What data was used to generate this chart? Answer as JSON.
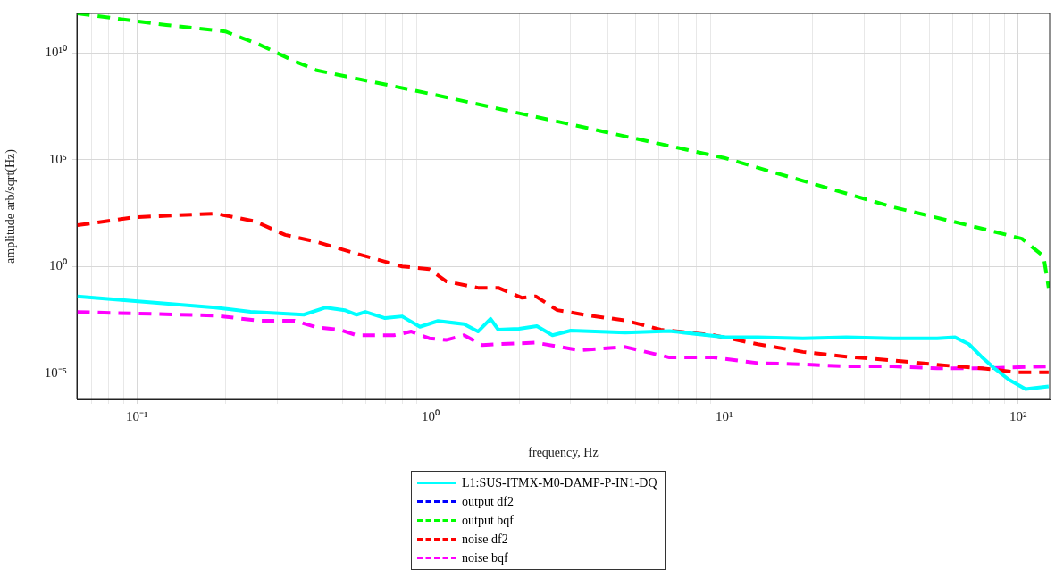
{
  "chart_data": {
    "type": "line",
    "xlabel": "frequency, Hz",
    "ylabel": "amplitude arb/sqrt(Hz)",
    "log": "xy",
    "grid": true,
    "legend": "bottom",
    "xlim": [
      0.0625,
      128
    ],
    "ylim": [
      6e-07,
      700000000000.0
    ],
    "xticks": [
      {
        "value": 0.07,
        "label": null
      },
      {
        "value": 0.08,
        "label": null
      },
      {
        "value": 0.09,
        "label": null
      },
      {
        "value": 0.1,
        "label": "10⁻¹"
      },
      {
        "value": 0.2,
        "label": null
      },
      {
        "value": 0.3,
        "label": null
      },
      {
        "value": 0.4,
        "label": null
      },
      {
        "value": 0.5,
        "label": null
      },
      {
        "value": 0.6,
        "label": null
      },
      {
        "value": 0.7,
        "label": null
      },
      {
        "value": 0.8,
        "label": null
      },
      {
        "value": 0.9,
        "label": null
      },
      {
        "value": 1,
        "label": "10⁰"
      },
      {
        "value": 2,
        "label": null
      },
      {
        "value": 3,
        "label": null
      },
      {
        "value": 4,
        "label": null
      },
      {
        "value": 5,
        "label": null
      },
      {
        "value": 6,
        "label": null
      },
      {
        "value": 7,
        "label": null
      },
      {
        "value": 8,
        "label": null
      },
      {
        "value": 9,
        "label": null
      },
      {
        "value": 10,
        "label": "10¹"
      },
      {
        "value": 20,
        "label": null
      },
      {
        "value": 30,
        "label": null
      },
      {
        "value": 40,
        "label": null
      },
      {
        "value": 50,
        "label": null
      },
      {
        "value": 60,
        "label": null
      },
      {
        "value": 70,
        "label": null
      },
      {
        "value": 80,
        "label": null
      },
      {
        "value": 90,
        "label": null
      },
      {
        "value": 100,
        "label": "10²"
      }
    ],
    "yticks": [
      {
        "value": 1e-05,
        "label": "10⁻⁵"
      },
      {
        "value": 1,
        "label": "10⁰"
      },
      {
        "value": 100000.0,
        "label": "10⁵"
      },
      {
        "value": 10000000000.0,
        "label": "10¹⁰"
      }
    ],
    "series": [
      {
        "name": "L1:SUS-ITMX-M0-DAMP-P-IN1-DQ",
        "color": "#00ffff",
        "line_style": "solid",
        "x": [
          0.0627,
          0.185,
          0.244,
          0.37,
          0.44,
          0.51,
          0.56,
          0.6,
          0.7,
          0.8,
          0.92,
          1.06,
          1.3,
          1.45,
          1.6,
          1.7,
          2,
          2.3,
          2.6,
          3,
          4.6,
          6.5,
          10,
          13,
          18.5,
          26,
          37.5,
          53,
          61,
          68,
          75,
          83,
          93,
          106,
          127
        ],
        "values": [
          0.04,
          0.012,
          0.0075,
          0.0055,
          0.012,
          0.009,
          0.0055,
          0.0075,
          0.0038,
          0.0046,
          0.0015,
          0.0028,
          0.002,
          0.0009,
          0.0035,
          0.0011,
          0.0012,
          0.0016,
          0.0006,
          0.001,
          0.0008,
          0.00095,
          0.0005,
          0.00048,
          0.00043,
          0.00048,
          0.00043,
          0.00043,
          0.00048,
          0.00023,
          6e-05,
          1.7e-05,
          5e-06,
          1.8e-06,
          2.4e-06
        ]
      },
      {
        "name": "output df2",
        "color": "#0000ff",
        "line_style": "dashed"
      },
      {
        "name": "output bqf",
        "color": "#00ff00",
        "line_style": "dashed",
        "x": [
          0.0627,
          0.126,
          0.2,
          0.26,
          0.345,
          0.41,
          1,
          10,
          37.5,
          75,
          103,
          122,
          127
        ],
        "values": [
          700000000000.0,
          200000000000.0,
          100000000000.0,
          25000000000.0,
          4000000000.0,
          1500000000.0,
          120000000.0,
          120000.0,
          600,
          60,
          20,
          3,
          0.1
        ]
      },
      {
        "name": "noise df2",
        "color": "#ff0000",
        "line_style": "dashed",
        "x": [
          0.0627,
          0.098,
          0.185,
          0.252,
          0.32,
          0.41,
          0.56,
          0.8,
          0.99,
          1.13,
          1.45,
          1.7,
          2.05,
          2.28,
          2.7,
          3.47,
          4.6,
          6.07,
          9.2,
          13,
          18.5,
          26,
          37.5,
          53,
          75,
          100,
          127
        ],
        "values": [
          85,
          200,
          300,
          130,
          30,
          14,
          4,
          1,
          0.75,
          0.2,
          0.1,
          0.1,
          0.034,
          0.04,
          0.009,
          0.005,
          0.003,
          0.0011,
          0.0006,
          0.00023,
          0.0001,
          6e-05,
          4e-05,
          2.5e-05,
          1.7e-05,
          1.1e-05,
          1.1e-05
        ]
      },
      {
        "name": "noise bqf",
        "color": "#ff00ff",
        "line_style": "dashed",
        "x": [
          0.0627,
          0.185,
          0.26,
          0.345,
          0.41,
          0.49,
          0.56,
          0.75,
          0.86,
          0.99,
          1.13,
          1.3,
          1.5,
          1.7,
          2.28,
          3.2,
          4.6,
          6.5,
          9.2,
          13,
          18.5,
          26,
          37.5,
          53,
          75,
          127
        ],
        "values": [
          0.0074,
          0.005,
          0.0029,
          0.0029,
          0.0014,
          0.0011,
          0.0006,
          0.0006,
          0.0009,
          0.00043,
          0.00036,
          0.0006,
          0.00021,
          0.00023,
          0.00027,
          0.00012,
          0.00017,
          5.5e-05,
          5.5e-05,
          3e-05,
          2.6e-05,
          2.1e-05,
          2.1e-05,
          1.7e-05,
          1.7e-05,
          2.1e-05
        ]
      }
    ]
  }
}
